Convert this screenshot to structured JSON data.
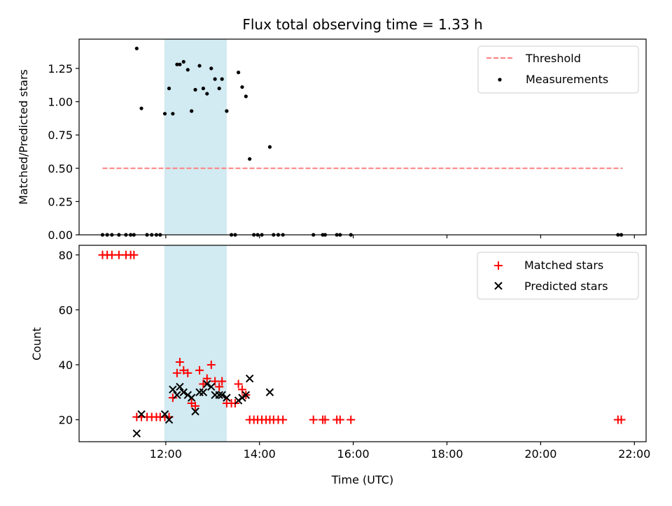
{
  "chart_data": [
    {
      "type": "scatter",
      "title": "Flux total observing time = 1.33 h",
      "xlabel": "",
      "ylabel": "Matched/Predicted stars",
      "ylim": [
        0,
        1.47
      ],
      "yticks": [
        "0.00",
        "0.25",
        "0.50",
        "0.75",
        "1.00",
        "1.25"
      ],
      "ytick_values": [
        0,
        0.25,
        0.5,
        0.75,
        1.0,
        1.25
      ],
      "highlight_span": {
        "start_hour": 11.97,
        "end_hour": 13.3,
        "color": "#add8e6"
      },
      "threshold": {
        "name": "Threshold",
        "value": 0.5,
        "x_start_hour": 10.65,
        "x_end_hour": 21.75,
        "color": "#ff8080"
      },
      "legend": [
        "Threshold",
        "Measurements"
      ],
      "legend_location": "upper right",
      "series": [
        {
          "name": "Measurements",
          "marker": "dot",
          "color": "#000000",
          "points": [
            [
              10.65,
              0
            ],
            [
              10.75,
              0
            ],
            [
              10.85,
              0
            ],
            [
              11.0,
              0
            ],
            [
              11.15,
              0
            ],
            [
              11.25,
              0
            ],
            [
              11.32,
              0
            ],
            [
              11.38,
              1.4
            ],
            [
              11.48,
              0.95
            ],
            [
              11.6,
              0
            ],
            [
              11.7,
              0
            ],
            [
              11.8,
              0
            ],
            [
              11.88,
              0
            ],
            [
              11.98,
              0.91
            ],
            [
              12.07,
              1.1
            ],
            [
              12.15,
              0.91
            ],
            [
              12.24,
              1.28
            ],
            [
              12.3,
              1.28
            ],
            [
              12.38,
              1.3
            ],
            [
              12.47,
              1.24
            ],
            [
              12.55,
              0.93
            ],
            [
              12.63,
              1.09
            ],
            [
              12.72,
              1.27
            ],
            [
              12.8,
              1.1
            ],
            [
              12.88,
              1.06
            ],
            [
              12.97,
              1.25
            ],
            [
              13.05,
              1.17
            ],
            [
              13.14,
              1.1
            ],
            [
              13.2,
              1.17
            ],
            [
              13.3,
              0.93
            ],
            [
              13.4,
              0
            ],
            [
              13.48,
              0
            ],
            [
              13.55,
              1.22
            ],
            [
              13.63,
              1.11
            ],
            [
              13.71,
              1.04
            ],
            [
              13.79,
              0.57
            ],
            [
              13.88,
              0
            ],
            [
              13.96,
              0
            ],
            [
              14.05,
              0
            ],
            [
              14.22,
              0.66
            ],
            [
              14.3,
              0
            ],
            [
              14.4,
              0
            ],
            [
              14.5,
              0
            ],
            [
              15.15,
              0
            ],
            [
              15.35,
              0
            ],
            [
              15.4,
              0
            ],
            [
              15.65,
              0
            ],
            [
              15.72,
              0
            ],
            [
              15.95,
              0
            ],
            [
              21.65,
              0
            ],
            [
              21.72,
              0
            ]
          ]
        }
      ]
    },
    {
      "type": "scatter",
      "title": "",
      "xlabel": "Time (UTC)",
      "ylabel": "Count",
      "ylim": [
        12,
        83.5
      ],
      "xlim": [
        10.15,
        22.25
      ],
      "xticks": [
        "12:00",
        "14:00",
        "16:00",
        "18:00",
        "20:00",
        "22:00"
      ],
      "xtick_values": [
        12,
        14,
        16,
        18,
        20,
        22
      ],
      "yticks": [
        "20",
        "40",
        "60",
        "80"
      ],
      "ytick_values": [
        20,
        40,
        60,
        80
      ],
      "highlight_span": {
        "start_hour": 11.97,
        "end_hour": 13.3,
        "color": "#add8e6"
      },
      "legend": [
        "Matched stars",
        "Predicted stars"
      ],
      "legend_location": "upper right",
      "series": [
        {
          "name": "Matched stars",
          "marker": "plus",
          "color": "#ff0000",
          "points": [
            [
              10.65,
              80
            ],
            [
              10.75,
              80
            ],
            [
              10.85,
              80
            ],
            [
              11.0,
              80
            ],
            [
              11.15,
              80
            ],
            [
              11.25,
              80
            ],
            [
              11.32,
              80
            ],
            [
              11.38,
              21
            ],
            [
              11.48,
              21
            ],
            [
              11.6,
              21
            ],
            [
              11.7,
              21
            ],
            [
              11.8,
              21
            ],
            [
              11.88,
              21
            ],
            [
              11.98,
              21
            ],
            [
              12.07,
              21
            ],
            [
              12.15,
              28
            ],
            [
              12.24,
              37
            ],
            [
              12.3,
              41
            ],
            [
              12.38,
              38
            ],
            [
              12.47,
              37
            ],
            [
              12.55,
              26
            ],
            [
              12.63,
              25
            ],
            [
              12.72,
              38
            ],
            [
              12.8,
              33
            ],
            [
              12.88,
              35
            ],
            [
              12.97,
              40
            ],
            [
              13.05,
              34
            ],
            [
              13.14,
              32
            ],
            [
              13.2,
              34
            ],
            [
              13.3,
              26
            ],
            [
              13.4,
              26
            ],
            [
              13.48,
              26
            ],
            [
              13.55,
              33
            ],
            [
              13.63,
              31
            ],
            [
              13.71,
              29
            ],
            [
              13.79,
              20
            ],
            [
              13.88,
              20
            ],
            [
              13.96,
              20
            ],
            [
              14.05,
              20
            ],
            [
              14.14,
              20
            ],
            [
              14.22,
              20
            ],
            [
              14.3,
              20
            ],
            [
              14.4,
              20
            ],
            [
              14.5,
              20
            ],
            [
              15.15,
              20
            ],
            [
              15.35,
              20
            ],
            [
              15.4,
              20
            ],
            [
              15.65,
              20
            ],
            [
              15.72,
              20
            ],
            [
              15.95,
              20
            ],
            [
              21.65,
              20
            ],
            [
              21.72,
              20
            ]
          ]
        },
        {
          "name": "Predicted stars",
          "marker": "x",
          "color": "#000000",
          "points": [
            [
              11.38,
              15
            ],
            [
              11.48,
              22
            ],
            [
              11.98,
              22
            ],
            [
              12.07,
              20
            ],
            [
              12.15,
              31
            ],
            [
              12.24,
              29
            ],
            [
              12.3,
              32
            ],
            [
              12.38,
              30
            ],
            [
              12.47,
              29
            ],
            [
              12.55,
              28
            ],
            [
              12.63,
              23
            ],
            [
              12.72,
              30
            ],
            [
              12.8,
              30
            ],
            [
              12.88,
              33
            ],
            [
              12.97,
              32
            ],
            [
              13.05,
              29
            ],
            [
              13.14,
              29
            ],
            [
              13.2,
              29
            ],
            [
              13.3,
              28
            ],
            [
              13.55,
              27
            ],
            [
              13.63,
              28
            ],
            [
              13.71,
              29
            ],
            [
              13.79,
              35
            ],
            [
              14.22,
              30
            ]
          ]
        }
      ]
    }
  ]
}
